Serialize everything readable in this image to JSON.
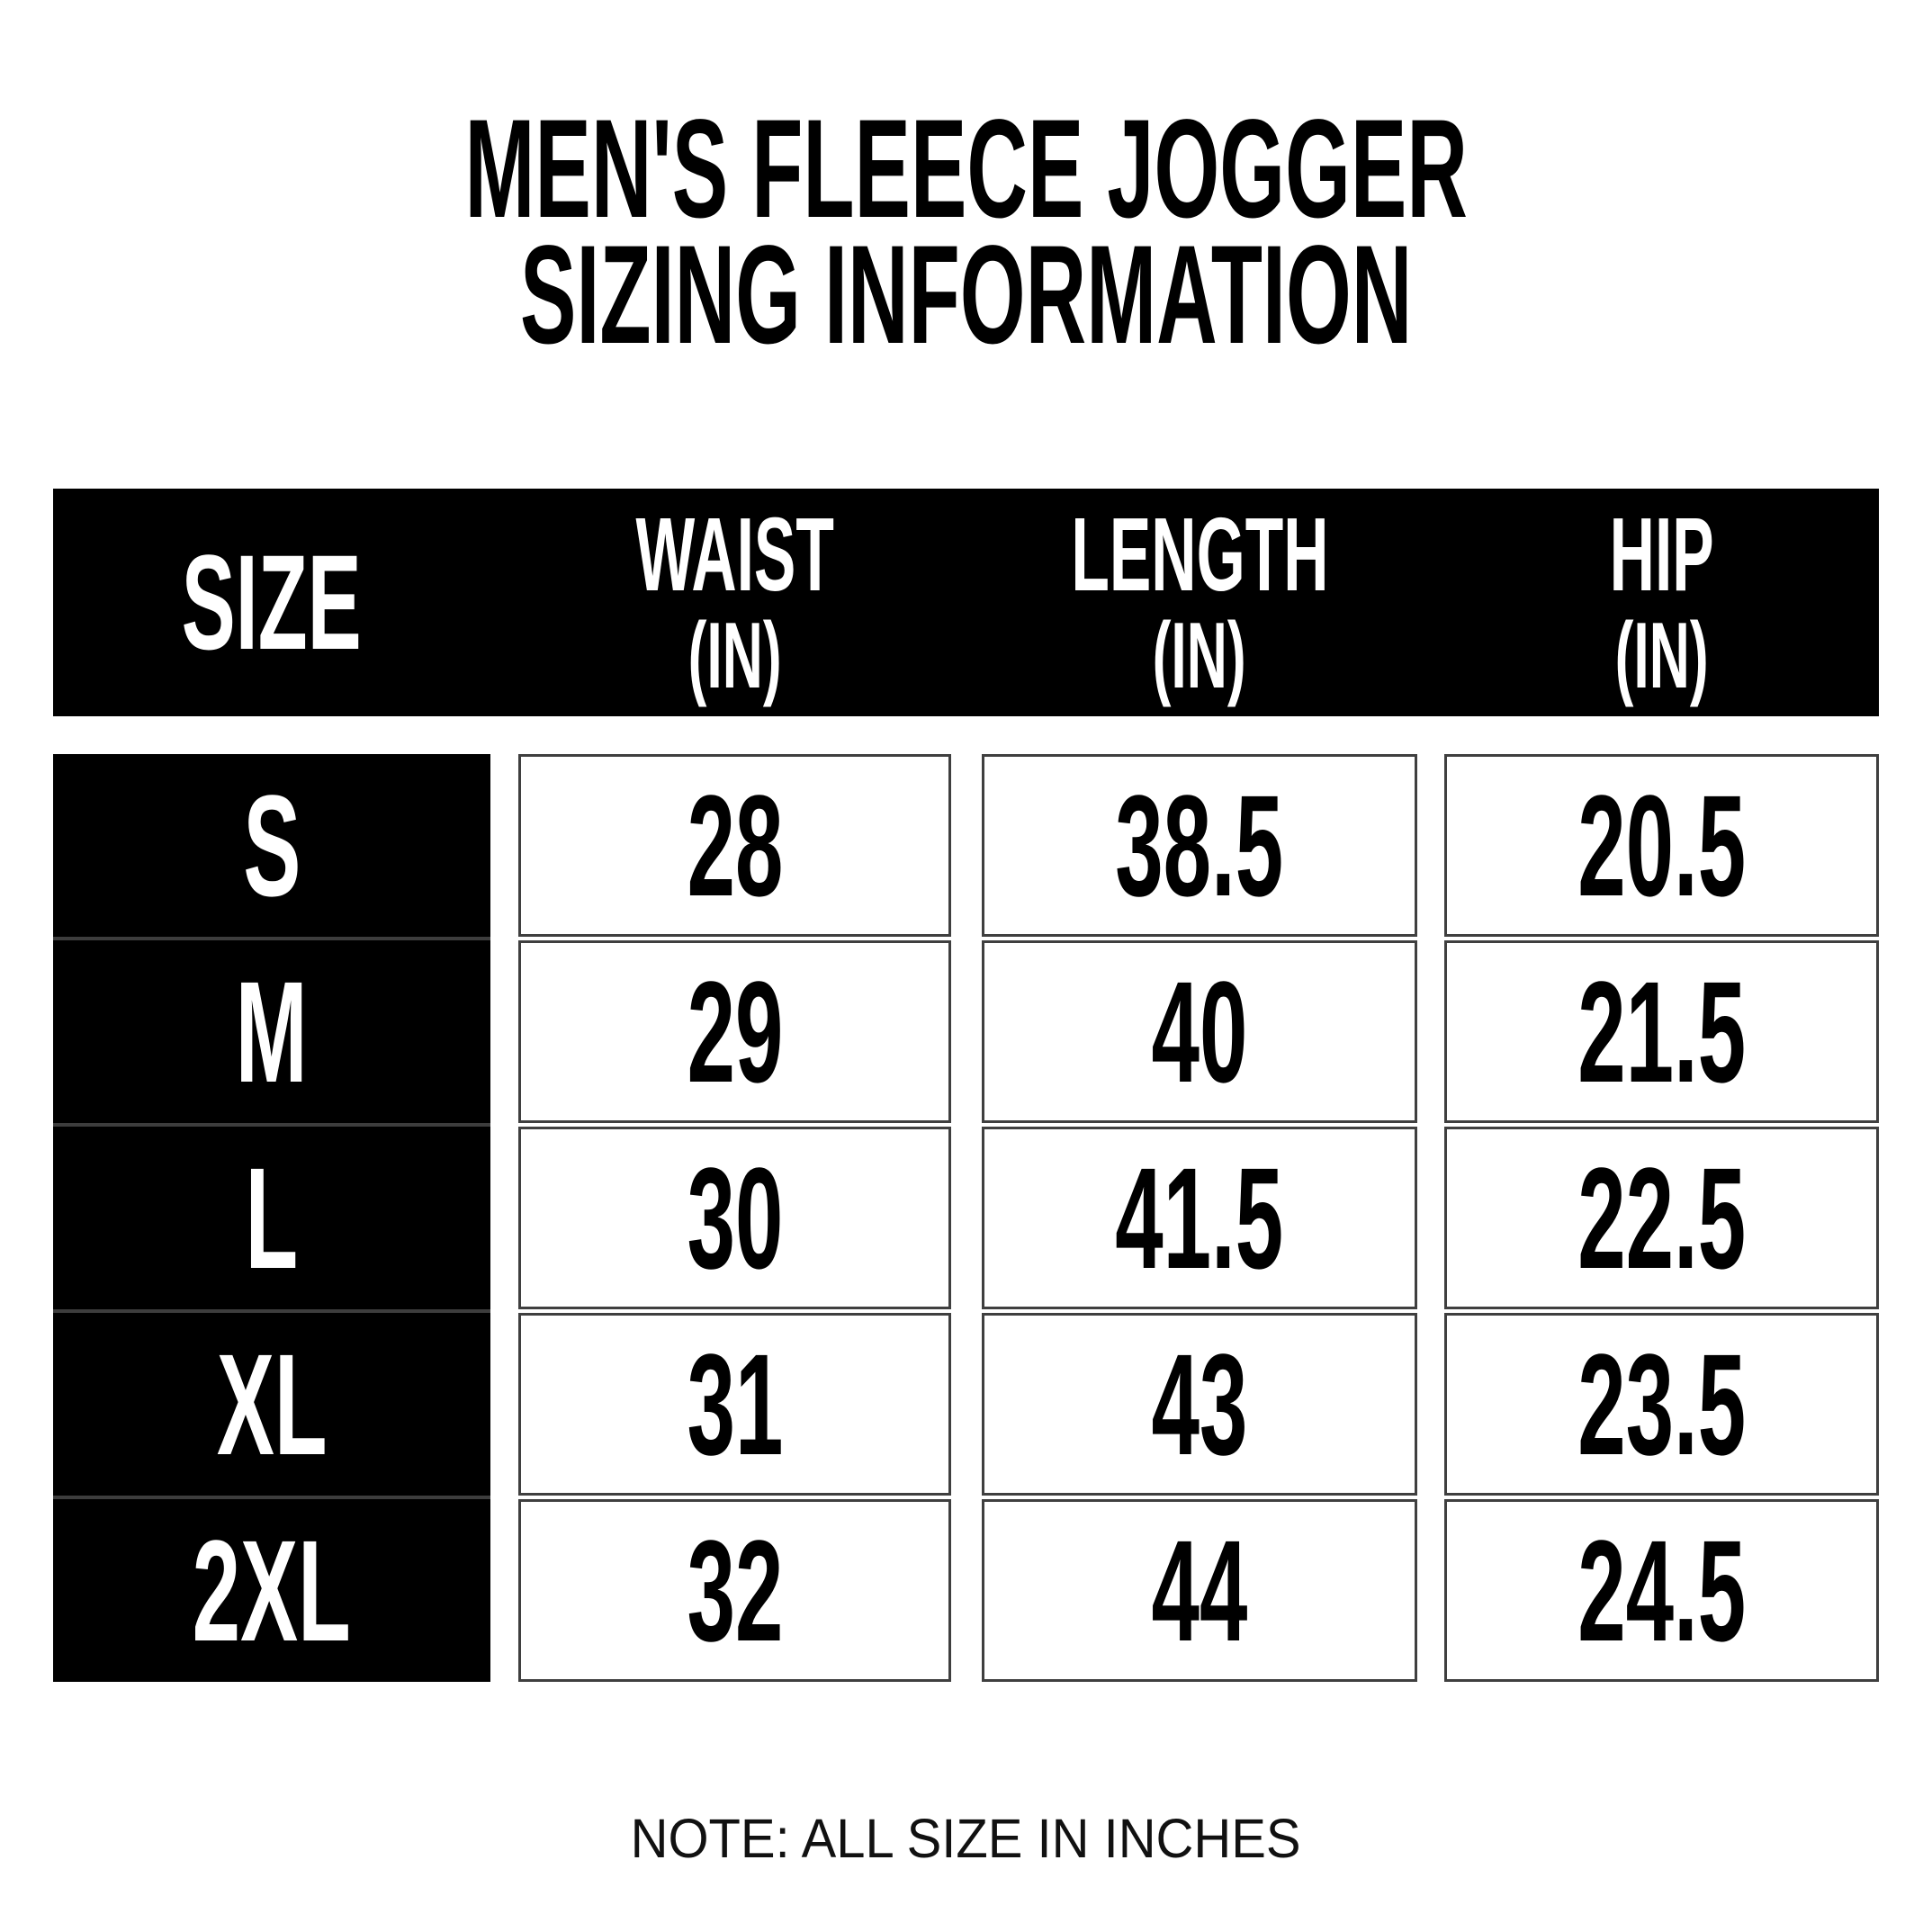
{
  "title": {
    "line1": "MEN'S FLEECE JOGGER",
    "line2": "SIZING INFORMATION"
  },
  "table": {
    "columns": [
      {
        "label": "SIZE",
        "unit": ""
      },
      {
        "label": "WAIST",
        "unit": "(IN)"
      },
      {
        "label": "LENGTH",
        "unit": "(IN)"
      },
      {
        "label": "HIP",
        "unit": "(IN)"
      }
    ],
    "rows": [
      {
        "size": "S",
        "waist": "28",
        "length": "38.5",
        "hip": "20.5"
      },
      {
        "size": "M",
        "waist": "29",
        "length": "40",
        "hip": "21.5"
      },
      {
        "size": "L",
        "waist": "30",
        "length": "41.5",
        "hip": "22.5"
      },
      {
        "size": "XL",
        "waist": "31",
        "length": "43",
        "hip": "23.5"
      },
      {
        "size": "2XL",
        "waist": "32",
        "length": "44",
        "hip": "24.5"
      }
    ]
  },
  "note": "NOTE: ALL SIZE IN INCHES",
  "colors": {
    "background": "#ffffff",
    "header_bg": "#000000",
    "header_text": "#ffffff",
    "size_cell_bg": "#000000",
    "size_cell_text": "#ffffff",
    "value_cell_bg": "#ffffff",
    "value_cell_text": "#000000",
    "cell_border": "#3f3f3f"
  },
  "chart_data": {
    "type": "table",
    "title": "MEN'S FLEECE JOGGER SIZING INFORMATION",
    "columns": [
      "SIZE",
      "WAIST (IN)",
      "LENGTH (IN)",
      "HIP (IN)"
    ],
    "rows": [
      [
        "S",
        28,
        38.5,
        20.5
      ],
      [
        "M",
        29,
        40,
        21.5
      ],
      [
        "L",
        30,
        41.5,
        22.5
      ],
      [
        "XL",
        31,
        43,
        23.5
      ],
      [
        "2XL",
        32,
        44,
        24.5
      ]
    ],
    "units": "inches",
    "footnote": "NOTE: ALL SIZE IN INCHES"
  }
}
